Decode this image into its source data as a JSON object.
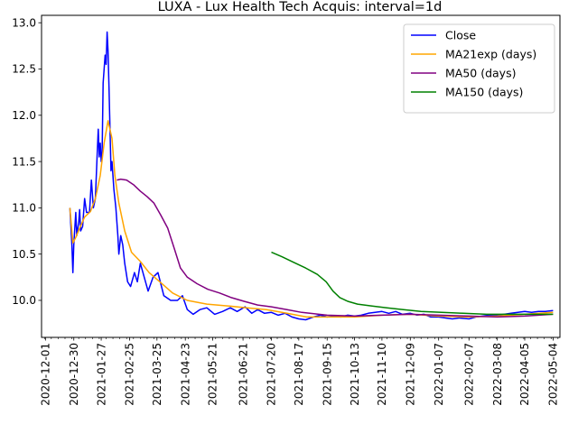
{
  "chart_data": {
    "type": "line",
    "title": "LUXA - Lux Health Tech Acquis: interval=1d",
    "xlabel": "",
    "ylabel": "",
    "xlim": [
      "2020-11-27",
      "2022-05-11"
    ],
    "ylim": [
      9.6,
      13.08
    ],
    "grid": false,
    "legend_position": "top-right",
    "x_ticks": [
      "2020-12-01",
      "2020-12-30",
      "2021-01-27",
      "2021-02-25",
      "2021-03-25",
      "2021-04-23",
      "2021-05-21",
      "2021-06-21",
      "2021-07-20",
      "2021-08-17",
      "2021-09-15",
      "2021-10-13",
      "2021-11-10",
      "2021-12-09",
      "2022-01-07",
      "2022-02-07",
      "2022-03-08",
      "2022-04-05",
      "2022-05-04"
    ],
    "y_ticks": [
      "10.0",
      "10.5",
      "11.0",
      "11.5",
      "12.0",
      "12.5",
      "13.0"
    ],
    "series": [
      {
        "name": "Close",
        "color": "#0000ff",
        "points": [
          [
            "2020-12-26",
            11.0
          ],
          [
            "2020-12-28",
            10.6
          ],
          [
            "2020-12-29",
            10.3
          ],
          [
            "2020-12-30",
            10.6
          ],
          [
            "2021-01-01",
            10.95
          ],
          [
            "2021-01-02",
            10.7
          ],
          [
            "2021-01-04",
            10.85
          ],
          [
            "2021-01-05",
            10.98
          ],
          [
            "2021-01-06",
            10.75
          ],
          [
            "2021-01-08",
            10.8
          ],
          [
            "2021-01-10",
            11.1
          ],
          [
            "2021-01-12",
            10.95
          ],
          [
            "2021-01-15",
            10.95
          ],
          [
            "2021-01-17",
            11.3
          ],
          [
            "2021-01-19",
            11.0
          ],
          [
            "2021-01-21",
            11.1
          ],
          [
            "2021-01-23",
            11.6
          ],
          [
            "2021-01-24",
            11.85
          ],
          [
            "2021-01-25",
            11.55
          ],
          [
            "2021-01-26",
            11.7
          ],
          [
            "2021-01-27",
            11.5
          ],
          [
            "2021-01-28",
            11.6
          ],
          [
            "2021-01-29",
            12.35
          ],
          [
            "2021-01-30",
            12.5
          ],
          [
            "2021-01-31",
            12.65
          ],
          [
            "2021-02-01",
            12.55
          ],
          [
            "2021-02-02",
            12.9
          ],
          [
            "2021-02-03",
            12.7
          ],
          [
            "2021-02-04",
            12.3
          ],
          [
            "2021-02-06",
            11.4
          ],
          [
            "2021-02-07",
            11.5
          ],
          [
            "2021-02-09",
            11.2
          ],
          [
            "2021-02-11",
            11.0
          ],
          [
            "2021-02-13",
            10.7
          ],
          [
            "2021-02-14",
            10.5
          ],
          [
            "2021-02-16",
            10.7
          ],
          [
            "2021-02-18",
            10.6
          ],
          [
            "2021-02-20",
            10.4
          ],
          [
            "2021-02-23",
            10.2
          ],
          [
            "2021-02-26",
            10.15
          ],
          [
            "2021-03-02",
            10.3
          ],
          [
            "2021-03-05",
            10.2
          ],
          [
            "2021-03-08",
            10.4
          ],
          [
            "2021-03-12",
            10.25
          ],
          [
            "2021-03-16",
            10.1
          ],
          [
            "2021-03-21",
            10.25
          ],
          [
            "2021-03-26",
            10.3
          ],
          [
            "2021-04-01",
            10.05
          ],
          [
            "2021-04-08",
            10.0
          ],
          [
            "2021-04-15",
            10.0
          ],
          [
            "2021-04-20",
            10.05
          ],
          [
            "2021-04-25",
            9.9
          ],
          [
            "2021-05-01",
            9.85
          ],
          [
            "2021-05-08",
            9.9
          ],
          [
            "2021-05-15",
            9.92
          ],
          [
            "2021-05-23",
            9.85
          ],
          [
            "2021-05-31",
            9.88
          ],
          [
            "2021-06-08",
            9.92
          ],
          [
            "2021-06-15",
            9.88
          ],
          [
            "2021-06-23",
            9.93
          ],
          [
            "2021-06-30",
            9.86
          ],
          [
            "2021-07-06",
            9.9
          ],
          [
            "2021-07-13",
            9.86
          ],
          [
            "2021-07-20",
            9.87
          ],
          [
            "2021-07-27",
            9.84
          ],
          [
            "2021-08-03",
            9.86
          ],
          [
            "2021-08-10",
            9.82
          ],
          [
            "2021-08-17",
            9.8
          ],
          [
            "2021-08-24",
            9.79
          ],
          [
            "2021-09-01",
            9.82
          ],
          [
            "2021-09-08",
            9.84
          ],
          [
            "2021-09-15",
            9.82
          ],
          [
            "2021-09-22",
            9.83
          ],
          [
            "2021-09-29",
            9.82
          ],
          [
            "2021-10-06",
            9.84
          ],
          [
            "2021-10-13",
            9.83
          ],
          [
            "2021-10-20",
            9.84
          ],
          [
            "2021-10-27",
            9.86
          ],
          [
            "2021-11-03",
            9.87
          ],
          [
            "2021-11-10",
            9.88
          ],
          [
            "2021-11-17",
            9.86
          ],
          [
            "2021-11-24",
            9.88
          ],
          [
            "2021-12-01",
            9.85
          ],
          [
            "2021-12-09",
            9.86
          ],
          [
            "2021-12-16",
            9.84
          ],
          [
            "2021-12-23",
            9.85
          ],
          [
            "2021-12-30",
            9.82
          ],
          [
            "2022-01-07",
            9.82
          ],
          [
            "2022-01-14",
            9.81
          ],
          [
            "2022-01-21",
            9.8
          ],
          [
            "2022-01-28",
            9.81
          ],
          [
            "2022-02-07",
            9.8
          ],
          [
            "2022-02-14",
            9.82
          ],
          [
            "2022-02-21",
            9.83
          ],
          [
            "2022-02-28",
            9.84
          ],
          [
            "2022-03-08",
            9.84
          ],
          [
            "2022-03-15",
            9.85
          ],
          [
            "2022-03-22",
            9.86
          ],
          [
            "2022-03-29",
            9.87
          ],
          [
            "2022-04-05",
            9.88
          ],
          [
            "2022-04-12",
            9.87
          ],
          [
            "2022-04-19",
            9.88
          ],
          [
            "2022-04-26",
            9.88
          ],
          [
            "2022-05-04",
            9.89
          ]
        ]
      },
      {
        "name": "MA21exp (days)",
        "color": "#ffa500",
        "points": [
          [
            "2020-12-26",
            11.0
          ],
          [
            "2020-12-29",
            10.62
          ],
          [
            "2021-01-01",
            10.68
          ],
          [
            "2021-01-05",
            10.78
          ],
          [
            "2021-01-10",
            10.9
          ],
          [
            "2021-01-16",
            10.96
          ],
          [
            "2021-01-21",
            11.1
          ],
          [
            "2021-01-26",
            11.35
          ],
          [
            "2021-01-30",
            11.7
          ],
          [
            "2021-02-03",
            11.94
          ],
          [
            "2021-02-07",
            11.75
          ],
          [
            "2021-02-10",
            11.35
          ],
          [
            "2021-02-14",
            11.05
          ],
          [
            "2021-02-20",
            10.75
          ],
          [
            "2021-02-27",
            10.52
          ],
          [
            "2021-03-08",
            10.42
          ],
          [
            "2021-03-17",
            10.3
          ],
          [
            "2021-03-28",
            10.2
          ],
          [
            "2021-04-10",
            10.08
          ],
          [
            "2021-04-25",
            10.0
          ],
          [
            "2021-05-15",
            9.96
          ],
          [
            "2021-06-05",
            9.94
          ],
          [
            "2021-06-25",
            9.92
          ],
          [
            "2021-07-15",
            9.9
          ],
          [
            "2021-08-05",
            9.86
          ],
          [
            "2021-08-25",
            9.82
          ],
          [
            "2021-09-15",
            9.82
          ],
          [
            "2021-10-13",
            9.82
          ],
          [
            "2021-11-10",
            9.84
          ],
          [
            "2021-12-09",
            9.85
          ],
          [
            "2022-01-07",
            9.83
          ],
          [
            "2022-02-07",
            9.82
          ],
          [
            "2022-03-08",
            9.83
          ],
          [
            "2022-04-05",
            9.85
          ],
          [
            "2022-05-04",
            9.87
          ]
        ]
      },
      {
        "name": "MA50 (days)",
        "color": "#800080",
        "points": [
          [
            "2021-02-12",
            11.3
          ],
          [
            "2021-02-16",
            11.31
          ],
          [
            "2021-02-22",
            11.3
          ],
          [
            "2021-03-01",
            11.25
          ],
          [
            "2021-03-08",
            11.18
          ],
          [
            "2021-03-15",
            11.12
          ],
          [
            "2021-03-22",
            11.05
          ],
          [
            "2021-03-29",
            10.92
          ],
          [
            "2021-04-05",
            10.78
          ],
          [
            "2021-04-12",
            10.55
          ],
          [
            "2021-04-18",
            10.35
          ],
          [
            "2021-04-25",
            10.25
          ],
          [
            "2021-05-05",
            10.18
          ],
          [
            "2021-05-16",
            10.12
          ],
          [
            "2021-05-28",
            10.08
          ],
          [
            "2021-06-09",
            10.03
          ],
          [
            "2021-06-22",
            9.99
          ],
          [
            "2021-07-06",
            9.95
          ],
          [
            "2021-07-20",
            9.93
          ],
          [
            "2021-08-05",
            9.9
          ],
          [
            "2021-08-20",
            9.87
          ],
          [
            "2021-09-15",
            9.84
          ],
          [
            "2021-10-13",
            9.83
          ],
          [
            "2021-11-10",
            9.84
          ],
          [
            "2021-12-09",
            9.85
          ],
          [
            "2022-01-07",
            9.84
          ],
          [
            "2022-02-07",
            9.83
          ],
          [
            "2022-03-08",
            9.82
          ],
          [
            "2022-04-05",
            9.83
          ],
          [
            "2022-05-04",
            9.85
          ]
        ]
      },
      {
        "name": "MA150 (days)",
        "color": "#008000",
        "points": [
          [
            "2021-07-20",
            10.52
          ],
          [
            "2021-07-31",
            10.47
          ],
          [
            "2021-08-12",
            10.41
          ],
          [
            "2021-08-24",
            10.35
          ],
          [
            "2021-09-05",
            10.28
          ],
          [
            "2021-09-14",
            10.2
          ],
          [
            "2021-09-21",
            10.1
          ],
          [
            "2021-09-28",
            10.03
          ],
          [
            "2021-10-06",
            9.99
          ],
          [
            "2021-10-16",
            9.96
          ],
          [
            "2021-10-30",
            9.94
          ],
          [
            "2021-11-15",
            9.92
          ],
          [
            "2021-12-02",
            9.9
          ],
          [
            "2021-12-20",
            9.88
          ],
          [
            "2022-01-10",
            9.87
          ],
          [
            "2022-02-01",
            9.86
          ],
          [
            "2022-02-25",
            9.85
          ],
          [
            "2022-03-20",
            9.85
          ],
          [
            "2022-04-10",
            9.85
          ],
          [
            "2022-05-04",
            9.85
          ]
        ]
      }
    ]
  }
}
